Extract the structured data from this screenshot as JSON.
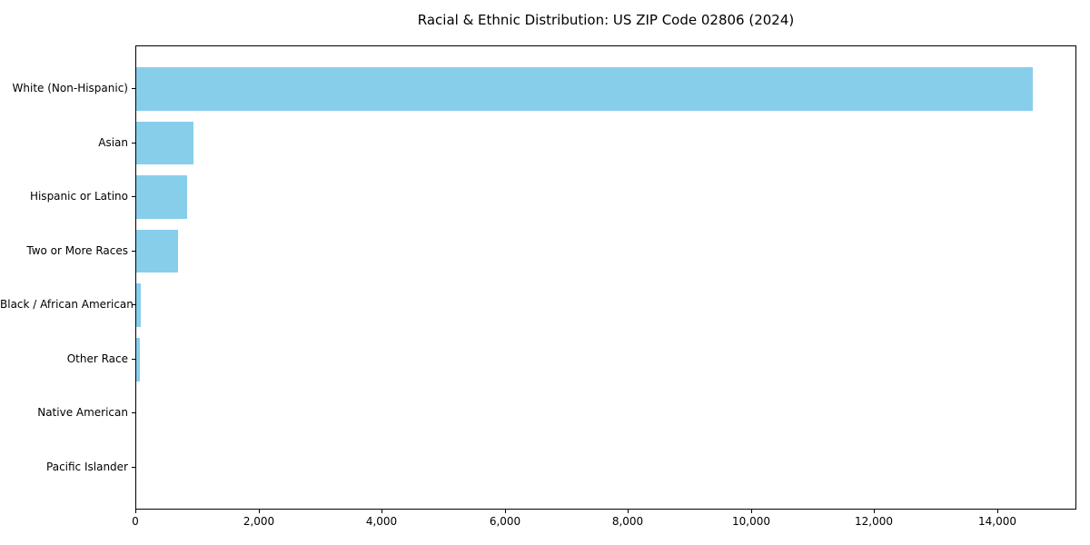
{
  "chart_data": {
    "type": "bar",
    "orientation": "horizontal",
    "title": "Racial & Ethnic Distribution: US ZIP Code 02806 (2024)",
    "categories": [
      "White (Non-Hispanic)",
      "Asian",
      "Hispanic or Latino",
      "Two or More Races",
      "Black / African American",
      "Other Race",
      "Native American",
      "Pacific Islander"
    ],
    "values": [
      14570,
      925,
      830,
      680,
      80,
      65,
      0,
      0
    ],
    "xlabel": "",
    "ylabel": "",
    "xlim": [
      0,
      15290
    ],
    "x_ticks": [
      0,
      2000,
      4000,
      6000,
      8000,
      10000,
      12000,
      14000
    ],
    "x_tick_labels": [
      "0",
      "2,000",
      "4,000",
      "6,000",
      "8,000",
      "10,000",
      "12,000",
      "14,000"
    ],
    "bar_color": "#87CEEB",
    "grid": false,
    "legend": null
  }
}
